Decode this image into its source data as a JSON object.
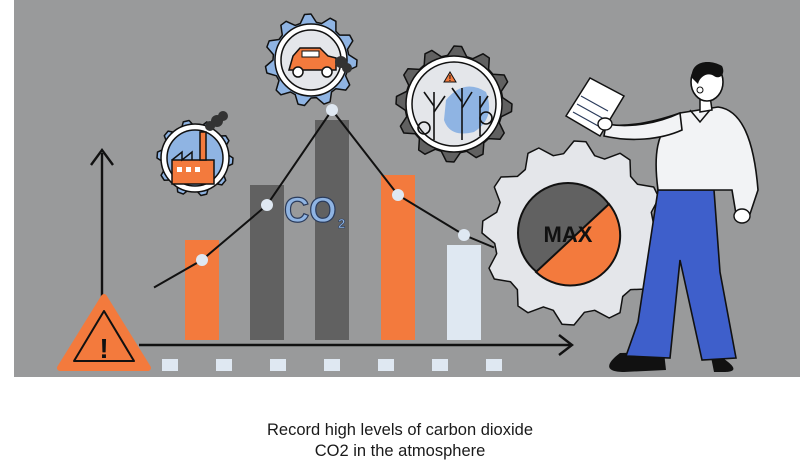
{
  "illustration": {
    "co2_label": "CO",
    "co2_subscript": "2",
    "gauge_label": "MAX",
    "warning_symbol": "!",
    "colors": {
      "background": "#999a9b",
      "orange": "#f37a3d",
      "dark_gray": "#616161",
      "light_blue": "#dfe8f2",
      "accent_blue": "#8fb4e3",
      "gear_gray": "#e4e6ea",
      "navy": "#16213a",
      "trousers": "#3e5fcb"
    }
  },
  "chart_data": {
    "type": "bar",
    "title": "",
    "xlabel": "",
    "ylabel": "",
    "categories": [
      "",
      "",
      "",
      "",
      ""
    ],
    "values": [
      2.0,
      3.1,
      4.4,
      3.3,
      1.9
    ],
    "bar_colors": [
      "#f37a3d",
      "#616161",
      "#616161",
      "#f37a3d",
      "#dfe8f2"
    ],
    "trend_line": [
      1.6,
      2.7,
      4.6,
      2.9,
      2.1
    ],
    "ylim": [
      0,
      5
    ]
  },
  "caption": {
    "line1": "Record high levels of carbon dioxide",
    "line2": "CO2 in the atmosphere"
  }
}
